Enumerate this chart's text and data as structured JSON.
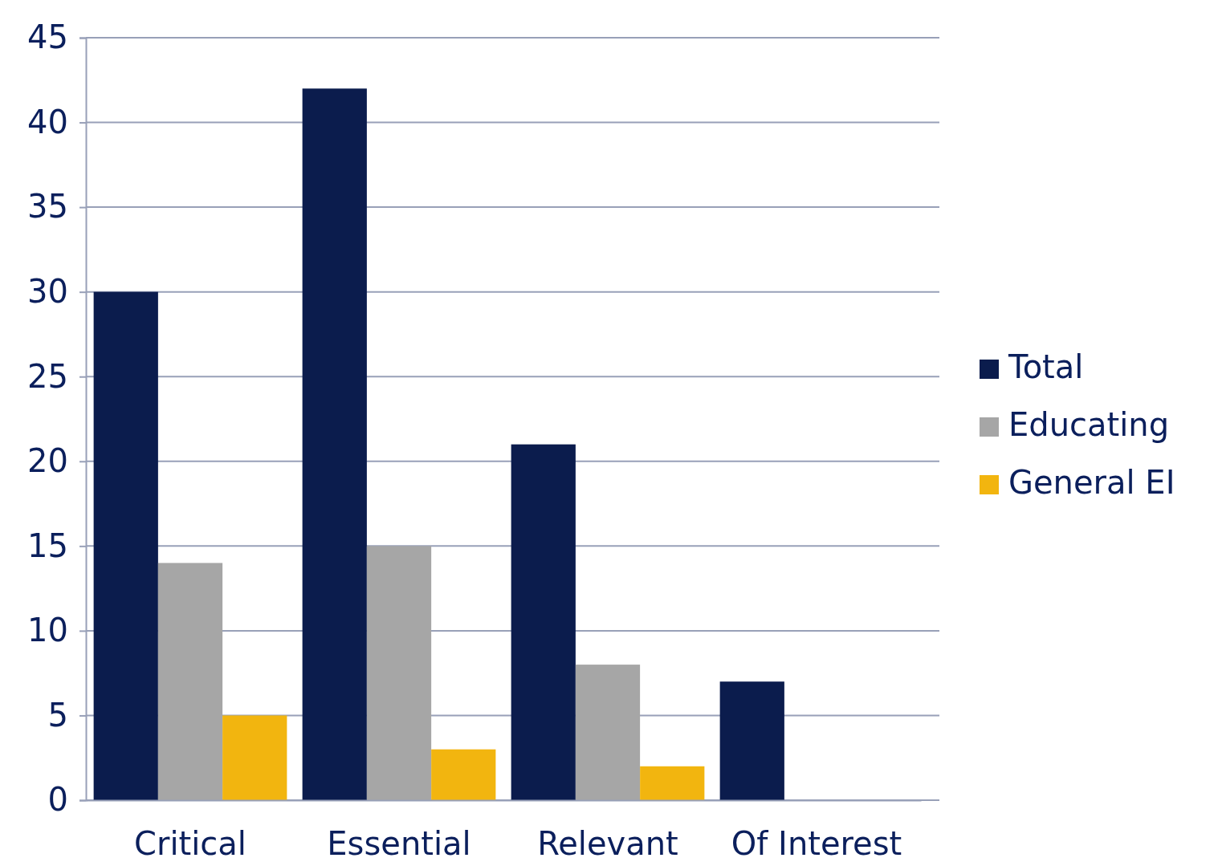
{
  "chart_data": {
    "type": "bar",
    "categories": [
      "Critical",
      "Essential",
      "Relevant",
      "Of Interest"
    ],
    "series": [
      {
        "name": "Total",
        "color": "#0b1c4d",
        "values": [
          30,
          42,
          21,
          7
        ]
      },
      {
        "name": "Educating",
        "color": "#a6a6a6",
        "values": [
          14,
          15,
          8,
          0
        ]
      },
      {
        "name": "General EI",
        "color": "#f2b50f",
        "values": [
          5,
          3,
          2,
          0
        ]
      }
    ],
    "ylim": [
      0,
      45
    ],
    "yticks": [
      0,
      5,
      10,
      15,
      20,
      25,
      30,
      35,
      40,
      45
    ],
    "grid": "y",
    "legend": "right"
  }
}
